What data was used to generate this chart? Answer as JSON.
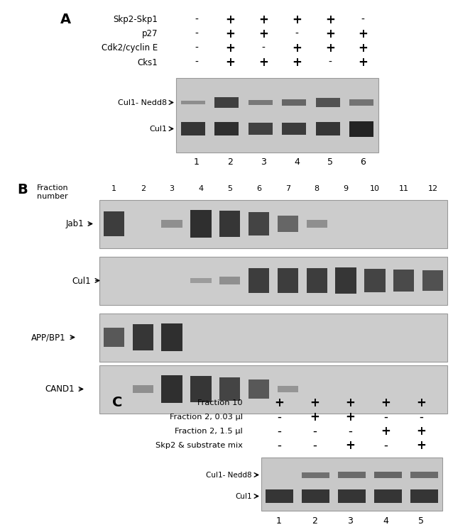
{
  "figure_width": 6.5,
  "figure_height": 7.24,
  "bg_color": "#ffffff",
  "panel_A": {
    "label": "A",
    "rows": [
      {
        "name": "Skp2-Skp1",
        "values": [
          "-",
          "+",
          "+",
          "+",
          "+",
          "-"
        ]
      },
      {
        "name": "p27",
        "values": [
          "-",
          "+",
          "+",
          "-",
          "+",
          "+"
        ]
      },
      {
        "name": "Cdk2/cyclin E",
        "values": [
          "-",
          "+",
          "-",
          "+",
          "+",
          "+"
        ]
      },
      {
        "name": "Cks1",
        "values": [
          "-",
          "+",
          "+",
          "+",
          "-",
          "+"
        ]
      }
    ],
    "col_labels": [
      "1",
      "2",
      "3",
      "4",
      "5",
      "6"
    ],
    "blot_label_top": "Cul1- Nedd8",
    "blot_label_bot": "Cul1",
    "nedd8_intensity": [
      0.25,
      0.85,
      0.4,
      0.55,
      0.7,
      0.45
    ],
    "cul1_intensity": [
      0.85,
      0.9,
      0.75,
      0.8,
      0.85,
      1.0
    ]
  },
  "panel_B": {
    "label": "B",
    "fraction_label": "Fraction\nnumber",
    "col_labels": [
      "1",
      "2",
      "3",
      "4",
      "5",
      "6",
      "7",
      "8",
      "9",
      "10",
      "11",
      "12"
    ],
    "blots": [
      {
        "name": "Jab1",
        "intensities": [
          0.85,
          0.0,
          0.25,
          0.95,
          0.9,
          0.8,
          0.55,
          0.25,
          0.0,
          0.0,
          0.0,
          0.0
        ]
      },
      {
        "name": "Cul1",
        "intensities": [
          0.0,
          0.0,
          0.0,
          0.15,
          0.25,
          0.85,
          0.85,
          0.85,
          0.9,
          0.8,
          0.75,
          0.7
        ]
      },
      {
        "name": "APP/BP1",
        "intensities": [
          0.65,
          0.9,
          0.95,
          0.0,
          0.0,
          0.0,
          0.0,
          0.0,
          0.0,
          0.0,
          0.0,
          0.0
        ]
      },
      {
        "name": "CAND1",
        "intensities": [
          0.0,
          0.25,
          0.95,
          0.9,
          0.8,
          0.65,
          0.2,
          0.0,
          0.0,
          0.0,
          0.0,
          0.0
        ]
      }
    ]
  },
  "panel_C": {
    "label": "C",
    "rows": [
      {
        "name": "Fraction 10",
        "values": [
          "+",
          "+",
          "+",
          "+",
          "+"
        ]
      },
      {
        "name": "Fraction 2, 0.03 µl",
        "values": [
          "-",
          "+",
          "+",
          "-",
          "-"
        ]
      },
      {
        "name": "Fraction 2, 1.5 µl",
        "values": [
          "-",
          "-",
          "-",
          "+",
          "+"
        ]
      },
      {
        "name": "Skp2 & substrate mix",
        "values": [
          "-",
          "-",
          "+",
          "-",
          "+"
        ]
      }
    ],
    "col_labels": [
      "1",
      "2",
      "3",
      "4",
      "5"
    ],
    "blot_label_top": "Cul1- Nedd8",
    "blot_label_bot": "Cul1",
    "nedd8_intensity": [
      0.0,
      0.5,
      0.55,
      0.6,
      0.55
    ],
    "cul1_intensity": [
      0.85,
      0.85,
      0.85,
      0.85,
      0.85
    ]
  }
}
